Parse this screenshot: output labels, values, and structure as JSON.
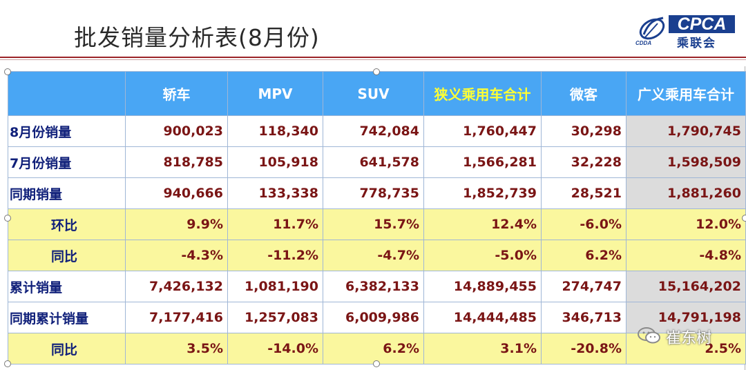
{
  "title": "批发销量分析表(8月份)",
  "logo": {
    "en": "CPCA",
    "cn": "乘联会",
    "sub": "CDDA"
  },
  "table": {
    "headers": [
      "",
      "轿车",
      "MPV",
      "SUV",
      "狭义乘用车合计",
      "微客",
      "广义乘用车合计"
    ],
    "rows": [
      {
        "label": "8月份销量",
        "values": [
          "900,023",
          "118,340",
          "742,084",
          "1,760,447",
          "30,298",
          "1,790,745"
        ]
      },
      {
        "label": "7月份销量",
        "values": [
          "818,785",
          "105,918",
          "641,578",
          "1,566,281",
          "32,228",
          "1,598,509"
        ]
      },
      {
        "label": "同期销量",
        "values": [
          "940,666",
          "133,338",
          "778,735",
          "1,852,739",
          "28,521",
          "1,881,260"
        ]
      },
      {
        "label": "环比",
        "values": [
          "9.9%",
          "11.7%",
          "15.7%",
          "12.4%",
          "-6.0%",
          "12.0%"
        ]
      },
      {
        "label": "同比",
        "values": [
          "-4.3%",
          "-11.2%",
          "-4.7%",
          "-5.0%",
          "6.2%",
          "-4.8%"
        ]
      },
      {
        "label": "累计销量",
        "values": [
          "7,426,132",
          "1,081,190",
          "6,382,133",
          "14,889,455",
          "274,747",
          "15,164,202"
        ]
      },
      {
        "label": "同期累计销量",
        "values": [
          "7,177,416",
          "1,257,083",
          "6,009,986",
          "14,444,485",
          "346,713",
          "14,791,198"
        ]
      },
      {
        "label": "同比",
        "values": [
          "3.5%",
          "-14.0%",
          "6.2%",
          "3.1%",
          "-20.8%",
          "2.5%"
        ]
      }
    ]
  },
  "watermark": "崔东树",
  "colors": {
    "header_bg": "#49a6f4",
    "highlight_header_text": "#ffff33",
    "value_text": "#7a1515",
    "label_text": "#10207a",
    "yellow_row": "#faf79e",
    "gray_col": "#dcdcdc",
    "title_rule": "#9b2226"
  }
}
